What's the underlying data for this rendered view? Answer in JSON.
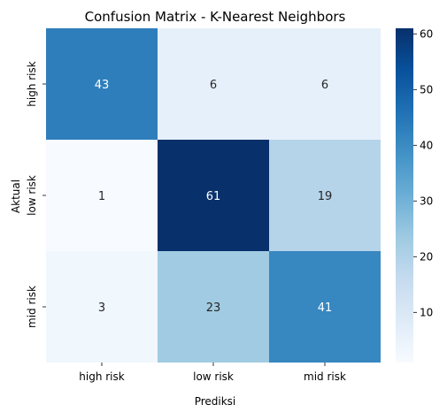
{
  "chart_data": {
    "type": "heatmap",
    "title": "Confusion Matrix - K-Nearest Neighbors",
    "xlabel": "Prediksi",
    "ylabel": "Aktual",
    "x_categories": [
      "high risk",
      "low risk",
      "mid risk"
    ],
    "y_categories": [
      "high risk",
      "low risk",
      "mid risk"
    ],
    "values": [
      [
        43,
        6,
        6
      ],
      [
        1,
        61,
        19
      ],
      [
        3,
        23,
        41
      ]
    ],
    "colorbar": {
      "range": [
        1,
        61
      ],
      "ticks": [
        10,
        20,
        30,
        40,
        50,
        60
      ],
      "colormap": "Blues"
    }
  }
}
